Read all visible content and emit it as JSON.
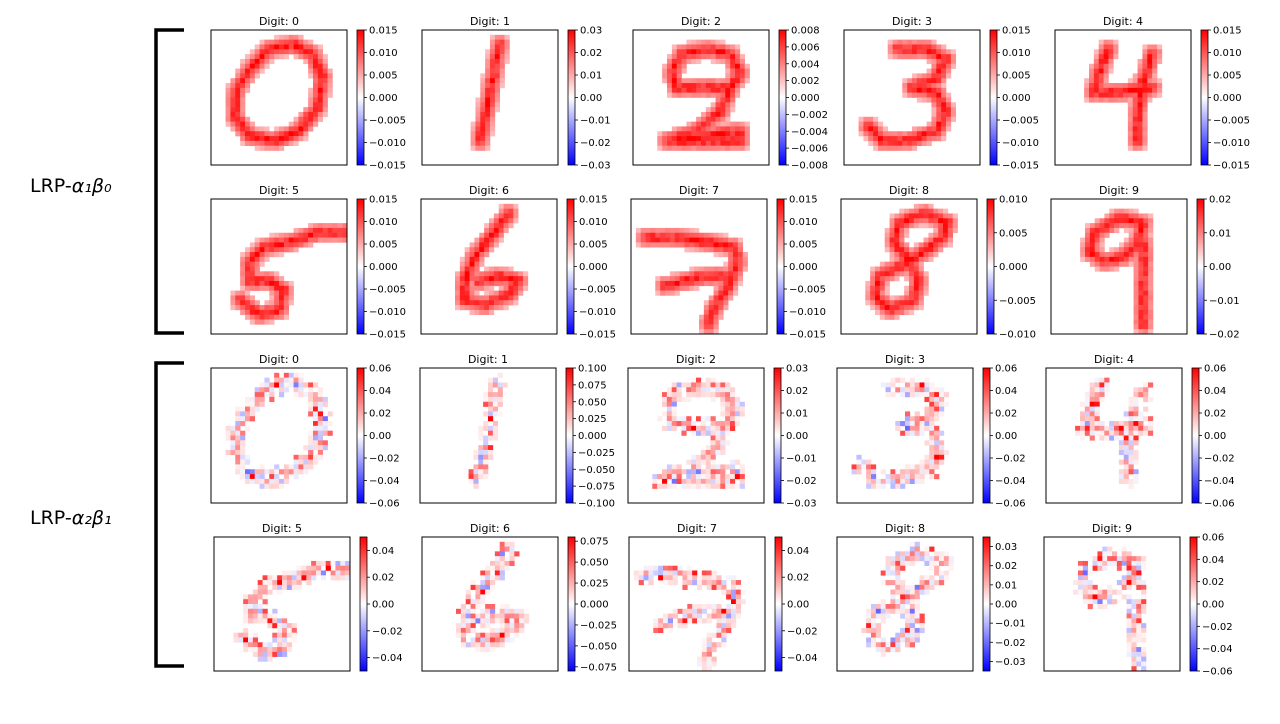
{
  "chart_data": {
    "type": "heatmap",
    "colormap": "bwr",
    "groups": [
      {
        "label_main": "LRP-",
        "label_math": "α₁β₀",
        "panels": [
          {
            "title": "Digit: 0",
            "digit": 0,
            "scale": 0.015,
            "ticks": [
              0.015,
              0.01,
              0.005,
              0.0,
              -0.005,
              -0.01,
              -0.015
            ],
            "tick_labels": [
              "0.015",
              "0.010",
              "0.005",
              "0.000",
              "−0.005",
              "−0.010",
              "−0.015"
            ],
            "relevance": "positive"
          },
          {
            "title": "Digit: 1",
            "digit": 1,
            "scale": 0.03,
            "ticks": [
              0.03,
              0.02,
              0.01,
              0.0,
              -0.01,
              -0.02,
              -0.03
            ],
            "tick_labels": [
              "0.03",
              "0.02",
              "0.01",
              "0.00",
              "−0.01",
              "−0.02",
              "−0.03"
            ],
            "relevance": "positive"
          },
          {
            "title": "Digit: 2",
            "digit": 2,
            "scale": 0.008,
            "ticks": [
              0.008,
              0.006,
              0.004,
              0.002,
              0.0,
              -0.002,
              -0.004,
              -0.006,
              -0.008
            ],
            "tick_labels": [
              "0.008",
              "0.006",
              "0.004",
              "0.002",
              "0.000",
              "−0.002",
              "−0.004",
              "−0.006",
              "−0.008"
            ],
            "relevance": "positive"
          },
          {
            "title": "Digit: 3",
            "digit": 3,
            "scale": 0.015,
            "ticks": [
              0.015,
              0.01,
              0.005,
              0.0,
              -0.005,
              -0.01,
              -0.015
            ],
            "tick_labels": [
              "0.015",
              "0.010",
              "0.005",
              "0.000",
              "−0.005",
              "−0.010",
              "−0.015"
            ],
            "relevance": "positive"
          },
          {
            "title": "Digit: 4",
            "digit": 4,
            "scale": 0.015,
            "ticks": [
              0.015,
              0.01,
              0.005,
              0.0,
              -0.005,
              -0.01,
              -0.015
            ],
            "tick_labels": [
              "0.015",
              "0.010",
              "0.005",
              "0.000",
              "−0.005",
              "−0.010",
              "−0.015"
            ],
            "relevance": "positive"
          },
          {
            "title": "Digit: 5",
            "digit": 5,
            "scale": 0.015,
            "ticks": [
              0.015,
              0.01,
              0.005,
              0.0,
              -0.005,
              -0.01,
              -0.015
            ],
            "tick_labels": [
              "0.015",
              "0.010",
              "0.005",
              "0.000",
              "−0.005",
              "−0.010",
              "−0.015"
            ],
            "relevance": "positive"
          },
          {
            "title": "Digit: 6",
            "digit": 6,
            "scale": 0.015,
            "ticks": [
              0.015,
              0.01,
              0.005,
              0.0,
              -0.005,
              -0.01,
              -0.015
            ],
            "tick_labels": [
              "0.015",
              "0.010",
              "0.005",
              "0.000",
              "−0.005",
              "−0.010",
              "−0.015"
            ],
            "relevance": "positive"
          },
          {
            "title": "Digit: 7",
            "digit": 7,
            "scale": 0.015,
            "ticks": [
              0.015,
              0.01,
              0.005,
              0.0,
              -0.005,
              -0.01,
              -0.015
            ],
            "tick_labels": [
              "0.015",
              "0.010",
              "0.005",
              "0.000",
              "−0.005",
              "−0.010",
              "−0.015"
            ],
            "relevance": "positive"
          },
          {
            "title": "Digit: 8",
            "digit": 8,
            "scale": 0.01,
            "ticks": [
              0.01,
              0.005,
              0.0,
              -0.005,
              -0.01
            ],
            "tick_labels": [
              "0.010",
              "0.005",
              "0.000",
              "−0.005",
              "−0.010"
            ],
            "relevance": "positive"
          },
          {
            "title": "Digit: 9",
            "digit": 9,
            "scale": 0.02,
            "ticks": [
              0.02,
              0.01,
              0.0,
              -0.01,
              -0.02
            ],
            "tick_labels": [
              "0.02",
              "0.01",
              "0.00",
              "−0.01",
              "−0.02"
            ],
            "relevance": "positive"
          }
        ]
      },
      {
        "label_main": "LRP-",
        "label_math": "α₂β₁",
        "panels": [
          {
            "title": "Digit: 0",
            "digit": 0,
            "scale": 0.06,
            "ticks": [
              0.06,
              0.04,
              0.02,
              0.0,
              -0.02,
              -0.04,
              -0.06
            ],
            "tick_labels": [
              "0.06",
              "0.04",
              "0.02",
              "0.00",
              "−0.02",
              "−0.04",
              "−0.06"
            ],
            "relevance": "mixed"
          },
          {
            "title": "Digit: 1",
            "digit": 1,
            "scale": 0.1,
            "ticks": [
              0.1,
              0.075,
              0.05,
              0.025,
              0.0,
              -0.025,
              -0.05,
              -0.075,
              -0.1
            ],
            "tick_labels": [
              "0.100",
              "0.075",
              "0.050",
              "0.025",
              "0.000",
              "−0.025",
              "−0.050",
              "−0.075",
              "−0.100"
            ],
            "relevance": "mixed"
          },
          {
            "title": "Digit: 2",
            "digit": 2,
            "scale": 0.03,
            "ticks": [
              0.03,
              0.02,
              0.01,
              0.0,
              -0.01,
              -0.02,
              -0.03
            ],
            "tick_labels": [
              "0.03",
              "0.02",
              "0.01",
              "0.00",
              "−0.01",
              "−0.02",
              "−0.03"
            ],
            "relevance": "mixed"
          },
          {
            "title": "Digit: 3",
            "digit": 3,
            "scale": 0.06,
            "ticks": [
              0.06,
              0.04,
              0.02,
              0.0,
              -0.02,
              -0.04,
              -0.06
            ],
            "tick_labels": [
              "0.06",
              "0.04",
              "0.02",
              "0.00",
              "−0.02",
              "−0.04",
              "−0.06"
            ],
            "relevance": "mixed"
          },
          {
            "title": "Digit: 4",
            "digit": 4,
            "scale": 0.06,
            "ticks": [
              0.06,
              0.04,
              0.02,
              0.0,
              -0.02,
              -0.04,
              -0.06
            ],
            "tick_labels": [
              "0.06",
              "0.04",
              "0.02",
              "0.00",
              "−0.02",
              "−0.04",
              "−0.06"
            ],
            "relevance": "mixed"
          },
          {
            "title": "Digit: 5",
            "digit": 5,
            "scale": 0.05,
            "ticks": [
              0.04,
              0.02,
              0.0,
              -0.02,
              -0.04
            ],
            "tick_labels": [
              "0.04",
              "0.02",
              "0.00",
              "−0.02",
              "−0.04"
            ],
            "relevance": "mixed"
          },
          {
            "title": "Digit: 6",
            "digit": 6,
            "scale": 0.08,
            "ticks": [
              0.075,
              0.05,
              0.025,
              0.0,
              -0.025,
              -0.05,
              -0.075
            ],
            "tick_labels": [
              "0.075",
              "0.050",
              "0.025",
              "0.000",
              "−0.025",
              "−0.050",
              "−0.075"
            ],
            "relevance": "mixed"
          },
          {
            "title": "Digit: 7",
            "digit": 7,
            "scale": 0.05,
            "ticks": [
              0.04,
              0.02,
              0.0,
              -0.02,
              -0.04
            ],
            "tick_labels": [
              "0.04",
              "0.02",
              "0.00",
              "−0.02",
              "−0.04"
            ],
            "relevance": "mixed"
          },
          {
            "title": "Digit: 8",
            "digit": 8,
            "scale": 0.035,
            "ticks": [
              0.03,
              0.02,
              0.01,
              0.0,
              -0.01,
              -0.02,
              -0.03
            ],
            "tick_labels": [
              "0.03",
              "0.02",
              "0.01",
              "0.00",
              "−0.01",
              "−0.02",
              "−0.03"
            ],
            "relevance": "mixed"
          },
          {
            "title": "Digit: 9",
            "digit": 9,
            "scale": 0.06,
            "ticks": [
              0.06,
              0.04,
              0.02,
              0.0,
              -0.02,
              -0.04,
              -0.06
            ],
            "tick_labels": [
              "0.06",
              "0.04",
              "0.02",
              "0.00",
              "−0.02",
              "−0.04",
              "−0.06"
            ],
            "relevance": "mixed"
          }
        ]
      }
    ],
    "colors": {
      "positive": "#ff0000",
      "zero": "#ffffff",
      "negative": "#0000ff"
    }
  }
}
